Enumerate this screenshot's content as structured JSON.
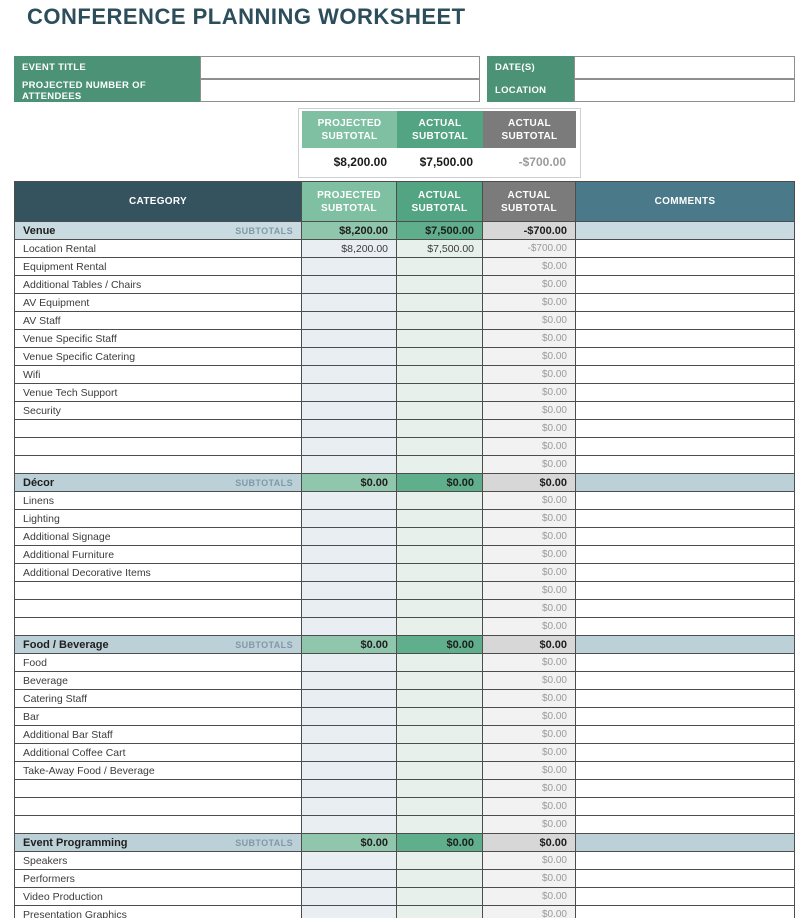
{
  "page": {
    "title": "CONFERENCE PLANNING WORKSHEET"
  },
  "form": {
    "fields": [
      {
        "label": "EVENT TITLE",
        "value": ""
      },
      {
        "label": "PROJECTED NUMBER OF ATTENDEES",
        "value": ""
      },
      {
        "label": "DATE(S)",
        "value": ""
      },
      {
        "label": "LOCATION",
        "value": ""
      }
    ]
  },
  "summary": {
    "columns": [
      {
        "label": "PROJECTED SUBTOTAL",
        "value": "$8,200.00"
      },
      {
        "label": "ACTUAL SUBTOTAL",
        "value": "$7,500.00"
      },
      {
        "label": "ACTUAL SUBTOTAL",
        "value": "-$700.00"
      }
    ]
  },
  "table": {
    "headers": [
      "CATEGORY",
      "PROJECTED SUBTOTAL",
      "ACTUAL SUBTOTAL",
      "ACTUAL SUBTOTAL",
      "COMMENTS"
    ],
    "subtotals_label": "SUBTOTALS",
    "sections": [
      {
        "name": "Venue",
        "projected": "$8,200.00",
        "actual": "$7,500.00",
        "difference": "-$700.00",
        "rows": [
          {
            "label": "Location Rental",
            "projected": "$8,200.00",
            "actual": "$7,500.00",
            "difference": "-$700.00",
            "comment": ""
          },
          {
            "label": "Equipment Rental",
            "projected": "",
            "actual": "",
            "difference": "$0.00",
            "comment": ""
          },
          {
            "label": "Additional Tables / Chairs",
            "projected": "",
            "actual": "",
            "difference": "$0.00",
            "comment": ""
          },
          {
            "label": "AV Equipment",
            "projected": "",
            "actual": "",
            "difference": "$0.00",
            "comment": ""
          },
          {
            "label": "AV Staff",
            "projected": "",
            "actual": "",
            "difference": "$0.00",
            "comment": ""
          },
          {
            "label": "Venue Specific Staff",
            "projected": "",
            "actual": "",
            "difference": "$0.00",
            "comment": ""
          },
          {
            "label": "Venue Specific Catering",
            "projected": "",
            "actual": "",
            "difference": "$0.00",
            "comment": ""
          },
          {
            "label": "Wifi",
            "projected": "",
            "actual": "",
            "difference": "$0.00",
            "comment": ""
          },
          {
            "label": "Venue Tech Support",
            "projected": "",
            "actual": "",
            "difference": "$0.00",
            "comment": ""
          },
          {
            "label": "Security",
            "projected": "",
            "actual": "",
            "difference": "$0.00",
            "comment": ""
          },
          {
            "label": "",
            "projected": "",
            "actual": "",
            "difference": "$0.00",
            "comment": ""
          },
          {
            "label": "",
            "projected": "",
            "actual": "",
            "difference": "$0.00",
            "comment": ""
          },
          {
            "label": "",
            "projected": "",
            "actual": "",
            "difference": "$0.00",
            "comment": ""
          }
        ]
      },
      {
        "name": "Décor",
        "projected": "$0.00",
        "actual": "$0.00",
        "difference": "$0.00",
        "rows": [
          {
            "label": "Linens",
            "projected": "",
            "actual": "",
            "difference": "$0.00",
            "comment": ""
          },
          {
            "label": "Lighting",
            "projected": "",
            "actual": "",
            "difference": "$0.00",
            "comment": ""
          },
          {
            "label": "Additional Signage",
            "projected": "",
            "actual": "",
            "difference": "$0.00",
            "comment": ""
          },
          {
            "label": "Additional Furniture",
            "projected": "",
            "actual": "",
            "difference": "$0.00",
            "comment": ""
          },
          {
            "label": "Additional Decorative Items",
            "projected": "",
            "actual": "",
            "difference": "$0.00",
            "comment": ""
          },
          {
            "label": "",
            "projected": "",
            "actual": "",
            "difference": "$0.00",
            "comment": ""
          },
          {
            "label": "",
            "projected": "",
            "actual": "",
            "difference": "$0.00",
            "comment": ""
          },
          {
            "label": "",
            "projected": "",
            "actual": "",
            "difference": "$0.00",
            "comment": ""
          }
        ]
      },
      {
        "name": "Food / Beverage",
        "projected": "$0.00",
        "actual": "$0.00",
        "difference": "$0.00",
        "rows": [
          {
            "label": "Food",
            "projected": "",
            "actual": "",
            "difference": "$0.00",
            "comment": ""
          },
          {
            "label": "Beverage",
            "projected": "",
            "actual": "",
            "difference": "$0.00",
            "comment": ""
          },
          {
            "label": "Catering Staff",
            "projected": "",
            "actual": "",
            "difference": "$0.00",
            "comment": ""
          },
          {
            "label": "Bar",
            "projected": "",
            "actual": "",
            "difference": "$0.00",
            "comment": ""
          },
          {
            "label": "Additional Bar Staff",
            "projected": "",
            "actual": "",
            "difference": "$0.00",
            "comment": ""
          },
          {
            "label": "Additional Coffee Cart",
            "projected": "",
            "actual": "",
            "difference": "$0.00",
            "comment": ""
          },
          {
            "label": "Take-Away Food / Beverage",
            "projected": "",
            "actual": "",
            "difference": "$0.00",
            "comment": ""
          },
          {
            "label": "",
            "projected": "",
            "actual": "",
            "difference": "$0.00",
            "comment": ""
          },
          {
            "label": "",
            "projected": "",
            "actual": "",
            "difference": "$0.00",
            "comment": ""
          },
          {
            "label": "",
            "projected": "",
            "actual": "",
            "difference": "$0.00",
            "comment": ""
          }
        ]
      },
      {
        "name": "Event Programming",
        "projected": "$0.00",
        "actual": "$0.00",
        "difference": "$0.00",
        "rows": [
          {
            "label": "Speakers",
            "projected": "",
            "actual": "",
            "difference": "$0.00",
            "comment": ""
          },
          {
            "label": "Performers",
            "projected": "",
            "actual": "",
            "difference": "$0.00",
            "comment": ""
          },
          {
            "label": "Video Production",
            "projected": "",
            "actual": "",
            "difference": "$0.00",
            "comment": ""
          },
          {
            "label": "Presentation Graphics",
            "projected": "",
            "actual": "",
            "difference": "$0.00",
            "comment": ""
          }
        ]
      }
    ]
  },
  "colors": {
    "title": "#2c4e5a",
    "form_green": "#4c9277",
    "header_light_green": "#7fc0a3",
    "header_mid_green": "#52a482",
    "header_gray": "#7b7b7b",
    "header_dark_teal": "#35535f",
    "header_comments_teal": "#4a7a8a",
    "section_row_first": "#c9dbe1",
    "section_row": "#bcd0d7",
    "section_projected_cell": "#8fc6ac",
    "section_actual_cell": "#5fae8c",
    "section_diff_cell": "#d7d7d7",
    "item_projected_cell": "#e8eef1",
    "item_actual_cell": "#e7f0ea",
    "item_diff_cell": "#f2f2f2",
    "grid_border": "#4d4d4d",
    "muted_value_text": "#9a9a9a"
  }
}
